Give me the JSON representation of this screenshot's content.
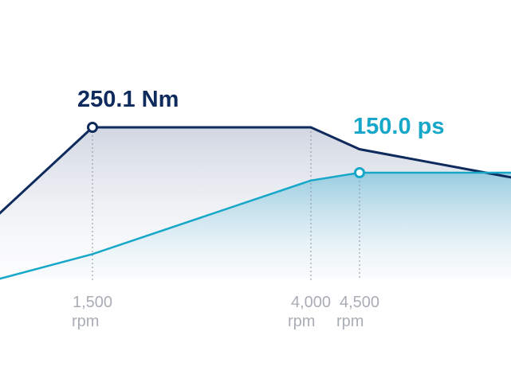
{
  "chart_data": {
    "type": "line",
    "x": [
      0,
      1500,
      4000,
      4500,
      6000
    ],
    "series": [
      {
        "name": "250.1 Nm",
        "values": [
          165,
          250.1,
          250.1,
          231,
          204
        ],
        "highlight_x": 1500,
        "highlight_y": 250.1,
        "color": "#0f2a5c"
      },
      {
        "name": "150.0 ps",
        "values": [
          60,
          83,
          143.6,
          150.0,
          150.0
        ],
        "highlight_x": 4500,
        "highlight_y": 150.0,
        "color": "#17a7c9"
      }
    ],
    "x_ticks": [
      {
        "value": 1500,
        "label": "1,500",
        "unit": "rpm"
      },
      {
        "value": 4000,
        "label": "4,000",
        "unit": "rpm"
      },
      {
        "value": 4500,
        "label": "4,500",
        "unit": "rpm"
      }
    ],
    "grid": false
  }
}
